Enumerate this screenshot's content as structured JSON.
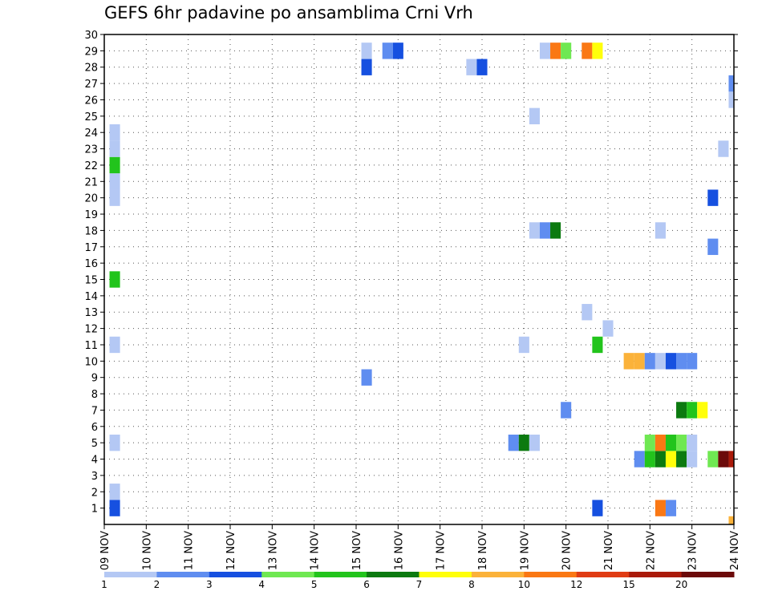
{
  "chart_data": {
    "type": "heatmap",
    "title": "GEFS 6hr padavine po ansamblima Crni Vrh",
    "xlabel": "",
    "ylabel": "",
    "x_ticks": [
      "09 NOV",
      "10 NOV",
      "11 NOV",
      "12 NOV",
      "13 NOV",
      "14 NOV",
      "15 NOV",
      "16 NOV",
      "17 NOV",
      "18 NOV",
      "19 NOV",
      "20 NOV",
      "21 NOV",
      "22 NOV",
      "23 NOV",
      "24 NOV"
    ],
    "y_ticks": [
      "1",
      "2",
      "3",
      "4",
      "5",
      "6",
      "7",
      "8",
      "9",
      "10",
      "11",
      "12",
      "13",
      "14",
      "15",
      "16",
      "17",
      "18",
      "19",
      "20",
      "21",
      "22",
      "23",
      "24",
      "25",
      "26",
      "27",
      "28",
      "29",
      "30"
    ],
    "xlim": [
      0,
      15
    ],
    "ylim": [
      0,
      30
    ],
    "grid": true,
    "legend": {
      "placement": "bottom",
      "labels": [
        "1",
        "2",
        "3",
        "4",
        "5",
        "6",
        "7",
        "8",
        "10",
        "12",
        "15",
        "20"
      ],
      "colors": [
        "#b4c8f4",
        "#5f8df0",
        "#1650e0",
        "#6fe852",
        "#22c41c",
        "#0c7a10",
        "#ffff0a",
        "#fbb23a",
        "#fa7814",
        "#e03c14",
        "#aa1a0a",
        "#6c0a0a"
      ]
    },
    "cells": [
      {
        "x": 0.25,
        "y": 1,
        "level": 3
      },
      {
        "x": 0.25,
        "y": 2,
        "level": 1
      },
      {
        "x": 0.25,
        "y": 5,
        "level": 1
      },
      {
        "x": 0.25,
        "y": 11,
        "level": 1
      },
      {
        "x": 0.25,
        "y": 15,
        "level": 5
      },
      {
        "x": 0.25,
        "y": 20,
        "level": 1
      },
      {
        "x": 0.25,
        "y": 21,
        "level": 1
      },
      {
        "x": 0.25,
        "y": 22,
        "level": 5
      },
      {
        "x": 0.25,
        "y": 23,
        "level": 1
      },
      {
        "x": 0.25,
        "y": 24,
        "level": 1
      },
      {
        "x": 6.25,
        "y": 9,
        "level": 2
      },
      {
        "x": 6.25,
        "y": 28,
        "level": 3
      },
      {
        "x": 6.25,
        "y": 29,
        "level": 1
      },
      {
        "x": 6.75,
        "y": 29,
        "level": 2
      },
      {
        "x": 7.0,
        "y": 29,
        "level": 3
      },
      {
        "x": 8.75,
        "y": 28,
        "level": 1
      },
      {
        "x": 9.0,
        "y": 28,
        "level": 3
      },
      {
        "x": 9.75,
        "y": 5,
        "level": 2
      },
      {
        "x": 10.0,
        "y": 5,
        "level": 6
      },
      {
        "x": 10.25,
        "y": 5,
        "level": 1
      },
      {
        "x": 10.0,
        "y": 11,
        "level": 1
      },
      {
        "x": 10.25,
        "y": 18,
        "level": 1
      },
      {
        "x": 10.5,
        "y": 18,
        "level": 2
      },
      {
        "x": 10.75,
        "y": 18,
        "level": 6
      },
      {
        "x": 10.25,
        "y": 25,
        "level": 1
      },
      {
        "x": 10.5,
        "y": 29,
        "level": 1
      },
      {
        "x": 10.75,
        "y": 29,
        "level": 9
      },
      {
        "x": 11.0,
        "y": 29,
        "level": 4
      },
      {
        "x": 11.0,
        "y": 7,
        "level": 2
      },
      {
        "x": 11.5,
        "y": 13,
        "level": 1
      },
      {
        "x": 11.5,
        "y": 29,
        "level": 9
      },
      {
        "x": 11.75,
        "y": 29,
        "level": 7
      },
      {
        "x": 11.75,
        "y": 1,
        "level": 3
      },
      {
        "x": 11.75,
        "y": 11,
        "level": 5
      },
      {
        "x": 12.0,
        "y": 12,
        "level": 1
      },
      {
        "x": 12.5,
        "y": 10,
        "level": 8
      },
      {
        "x": 12.75,
        "y": 10,
        "level": 8
      },
      {
        "x": 13.0,
        "y": 10,
        "level": 2
      },
      {
        "x": 13.25,
        "y": 10,
        "level": 1
      },
      {
        "x": 13.5,
        "y": 10,
        "level": 3
      },
      {
        "x": 13.75,
        "y": 10,
        "level": 2
      },
      {
        "x": 14.0,
        "y": 10,
        "level": 2
      },
      {
        "x": 12.75,
        "y": 4,
        "level": 2
      },
      {
        "x": 13.0,
        "y": 4,
        "level": 5
      },
      {
        "x": 13.25,
        "y": 4,
        "level": 6
      },
      {
        "x": 13.5,
        "y": 4,
        "level": 7
      },
      {
        "x": 13.75,
        "y": 4,
        "level": 6
      },
      {
        "x": 14.0,
        "y": 4,
        "level": 1
      },
      {
        "x": 13.0,
        "y": 5,
        "level": 4
      },
      {
        "x": 13.25,
        "y": 5,
        "level": 9
      },
      {
        "x": 13.5,
        "y": 5,
        "level": 5
      },
      {
        "x": 13.75,
        "y": 5,
        "level": 4
      },
      {
        "x": 14.0,
        "y": 5,
        "level": 1
      },
      {
        "x": 13.25,
        "y": 1,
        "level": 9
      },
      {
        "x": 13.5,
        "y": 1,
        "level": 2
      },
      {
        "x": 13.25,
        "y": 18,
        "level": 1
      },
      {
        "x": 13.75,
        "y": 7,
        "level": 6
      },
      {
        "x": 14.0,
        "y": 7,
        "level": 5
      },
      {
        "x": 14.25,
        "y": 7,
        "level": 7
      },
      {
        "x": 14.5,
        "y": 4,
        "level": 4
      },
      {
        "x": 14.75,
        "y": 4,
        "level": 12
      },
      {
        "x": 15.0,
        "y": 4,
        "level": 11
      },
      {
        "x": 14.5,
        "y": 17,
        "level": 2
      },
      {
        "x": 14.5,
        "y": 20,
        "level": 3
      },
      {
        "x": 14.75,
        "y": 23,
        "level": 1
      },
      {
        "x": 15.0,
        "y": 26,
        "level": 1
      },
      {
        "x": 15.0,
        "y": 27,
        "level": 2
      },
      {
        "x": 15.0,
        "y": 0,
        "level": 8
      }
    ]
  }
}
